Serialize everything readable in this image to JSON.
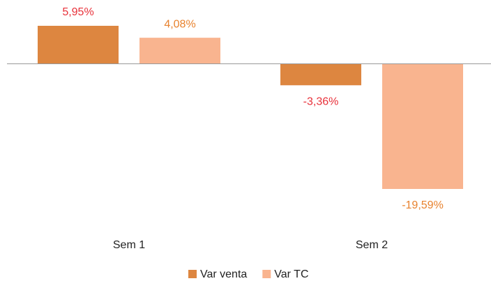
{
  "chart_data": {
    "type": "bar",
    "categories": [
      "Sem 1",
      "Sem 2"
    ],
    "series": [
      {
        "name": "Var venta",
        "color": "#dd8640",
        "label_color": "#e8313a",
        "values": [
          5.95,
          -3.36
        ],
        "value_labels": [
          "5,95%",
          "-3,36%"
        ]
      },
      {
        "name": "Var TC",
        "color": "#f9b48f",
        "label_color": "#e8822e",
        "values": [
          4.08,
          -19.59
        ],
        "value_labels": [
          "4,08%",
          "-19,59%"
        ]
      }
    ],
    "legend": "bottom"
  }
}
